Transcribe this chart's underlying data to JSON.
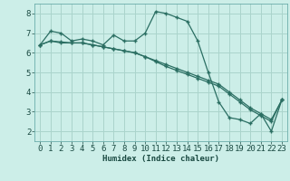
{
  "xlabel": "Humidex (Indice chaleur)",
  "ylabel": "",
  "bg_color": "#cceee8",
  "grid_color": "#aad4cc",
  "line_color": "#2a6e62",
  "x_values": [
    0,
    1,
    2,
    3,
    4,
    5,
    6,
    7,
    8,
    9,
    10,
    11,
    12,
    13,
    14,
    15,
    16,
    17,
    18,
    19,
    20,
    21,
    22,
    23
  ],
  "series1": [
    6.4,
    7.1,
    7.0,
    6.6,
    6.7,
    6.6,
    6.4,
    6.9,
    6.6,
    6.6,
    7.0,
    8.1,
    8.0,
    7.8,
    7.6,
    6.6,
    5.0,
    3.5,
    2.7,
    2.6,
    2.4,
    2.9,
    2.0,
    3.6
  ],
  "series2": [
    6.4,
    6.6,
    6.5,
    6.5,
    6.5,
    6.4,
    6.3,
    6.2,
    6.1,
    6.0,
    5.8,
    5.6,
    5.4,
    5.2,
    5.0,
    4.8,
    4.6,
    4.4,
    4.0,
    3.6,
    3.2,
    2.9,
    2.6,
    3.6
  ],
  "series3": [
    6.4,
    6.6,
    6.55,
    6.5,
    6.5,
    6.4,
    6.3,
    6.2,
    6.1,
    6.0,
    5.8,
    5.55,
    5.3,
    5.1,
    4.9,
    4.7,
    4.5,
    4.3,
    3.9,
    3.5,
    3.1,
    2.8,
    2.5,
    3.6
  ],
  "xlim": [
    -0.5,
    23.5
  ],
  "ylim": [
    1.5,
    8.5
  ],
  "yticks": [
    2,
    3,
    4,
    5,
    6,
    7,
    8
  ],
  "xticks": [
    0,
    1,
    2,
    3,
    4,
    5,
    6,
    7,
    8,
    9,
    10,
    11,
    12,
    13,
    14,
    15,
    16,
    17,
    18,
    19,
    20,
    21,
    22,
    23
  ],
  "xlabel_fontsize": 6.5,
  "tick_fontsize": 6.5
}
